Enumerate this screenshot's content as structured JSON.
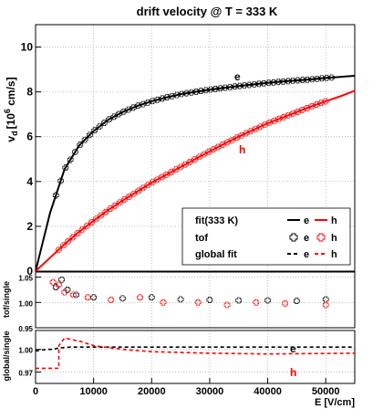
{
  "chart_data": [
    {
      "type": "scatter",
      "panel": "main",
      "title": "drift velocity @ T = 333 K",
      "ylabel_main": "v",
      "ylabel_sub": "d",
      "ylabel_unit": "[10",
      "ylabel_exp": "6",
      "ylabel_tail": " cm/s]",
      "xlim": [
        0,
        55000
      ],
      "ylim": [
        0,
        11
      ],
      "yticks": [
        0,
        2,
        4,
        6,
        8,
        10
      ],
      "grid": true,
      "labels": {
        "e": "e",
        "h": "h"
      },
      "colors": {
        "e": "#000000",
        "h": "#ff0000"
      },
      "legend_placement": "bottom-right",
      "legend": [
        {
          "label": "fit(333 K)",
          "e_label": "e",
          "h_label": "h",
          "style": "solid-line"
        },
        {
          "label": "tof",
          "e_label": "e",
          "h_label": "h",
          "style": "cross-marker"
        },
        {
          "label": "global fit",
          "e_label": "e",
          "h_label": "h",
          "style": "dashed-line"
        }
      ],
      "series": [
        {
          "name": "e",
          "x": [
            0,
            2500,
            5000,
            7500,
            10000,
            12500,
            15000,
            17500,
            20000,
            22500,
            25000,
            27500,
            30000,
            32500,
            35000,
            37500,
            40000,
            42500,
            45000,
            47500,
            50000,
            52500,
            55000
          ],
          "y": [
            0,
            2.6,
            4.55,
            5.6,
            6.25,
            6.75,
            7.1,
            7.37,
            7.58,
            7.75,
            7.9,
            8.0,
            8.1,
            8.18,
            8.26,
            8.33,
            8.4,
            8.46,
            8.51,
            8.56,
            8.62,
            8.67,
            8.72
          ]
        },
        {
          "name": "h",
          "x": [
            0,
            2500,
            5000,
            7500,
            10000,
            12500,
            15000,
            17500,
            20000,
            22500,
            25000,
            27500,
            30000,
            32500,
            35000,
            37500,
            40000,
            42500,
            45000,
            47500,
            50000,
            52500,
            55000
          ],
          "y": [
            0,
            0.6,
            1.2,
            1.75,
            2.25,
            2.72,
            3.15,
            3.55,
            3.95,
            4.3,
            4.65,
            5.0,
            5.35,
            5.68,
            6.0,
            6.3,
            6.6,
            6.85,
            7.1,
            7.35,
            7.58,
            7.8,
            8.05
          ]
        }
      ],
      "tof_points": {
        "e": {
          "x_start": 3500,
          "x_end": 51000,
          "count": 58
        },
        "h": {
          "x_start": 4000,
          "x_end": 50000,
          "count": 58
        }
      }
    },
    {
      "type": "scatter",
      "panel": "ratio-tof",
      "ylabel": "tof/single",
      "ylim": [
        0.95,
        1.06
      ],
      "yticks": [
        0.95,
        1.0,
        1.05
      ],
      "ytick_labels": [
        "0.95",
        "1.00",
        "1.05"
      ],
      "grid": true,
      "series": [
        {
          "name": "e",
          "x": [
            3500,
            4500,
            5500,
            7000,
            10000,
            15000,
            20000,
            25000,
            30000,
            35000,
            40000,
            45000,
            50000
          ],
          "y": [
            1.03,
            1.045,
            1.025,
            1.015,
            1.01,
            1.008,
            1.01,
            1.006,
            1.005,
            1.004,
            1.004,
            1.003,
            1.006
          ]
        },
        {
          "name": "h",
          "x": [
            3000,
            4000,
            5000,
            6500,
            9000,
            13000,
            18000,
            22000,
            28000,
            33000,
            38000,
            43000,
            50000
          ],
          "y": [
            1.04,
            1.035,
            1.02,
            1.015,
            1.01,
            1.005,
            1.01,
            1.0,
            1.0,
            0.995,
            1.0,
            0.998,
            0.995
          ]
        }
      ]
    },
    {
      "type": "line",
      "panel": "ratio-global",
      "ylabel": "global/single",
      "xlabel": "E [V/cm]",
      "ylim": [
        0.955,
        1.025
      ],
      "yticks": [
        0.97,
        1.0
      ],
      "ytick_labels": [
        "0.97",
        "1.00"
      ],
      "xticks": [
        0,
        10000,
        20000,
        30000,
        40000,
        50000
      ],
      "xtick_labels": [
        "0",
        "10000",
        "20000",
        "30000",
        "40000",
        "50000"
      ],
      "grid": true,
      "labels": {
        "e": "e",
        "h": "h"
      },
      "series": [
        {
          "name": "e",
          "x": [
            0,
            2000,
            3000,
            4000,
            6000,
            10000,
            20000,
            30000,
            40000,
            55000
          ],
          "y": [
            0.998,
            1.0,
            1.0,
            1.002,
            1.003,
            1.003,
            1.003,
            1.003,
            1.003,
            1.003
          ]
        },
        {
          "name": "h",
          "x": [
            0,
            4000,
            4000,
            5000,
            8000,
            10000,
            15000,
            20000,
            30000,
            40000,
            55000
          ],
          "y": [
            0.975,
            0.975,
            1.005,
            1.015,
            1.01,
            1.005,
            1.0,
            0.997,
            0.995,
            0.994,
            0.995
          ]
        }
      ]
    }
  ]
}
